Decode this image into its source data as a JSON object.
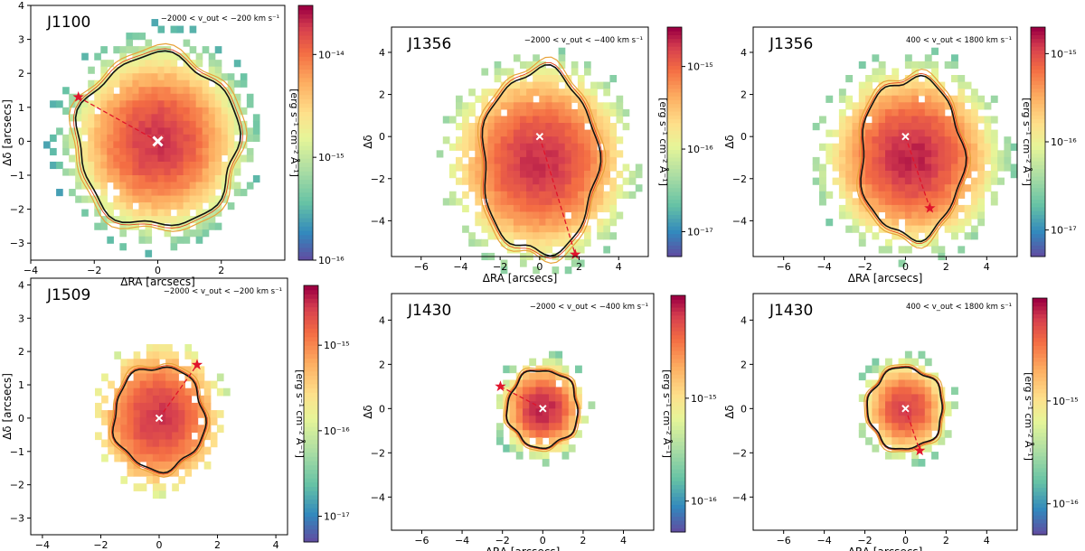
{
  "chart_data": [
    {
      "type": "heatmap",
      "title": "J1100",
      "velocity_label": "−2000 < v_out < −200 km s⁻¹",
      "xlabel": "ΔRA [arcsecs]",
      "ylabel": "Δδ [arcsecs]",
      "xlim": [
        -4,
        4
      ],
      "ylim": [
        -3.5,
        4
      ],
      "xticks": [
        -4,
        -2,
        0,
        2
      ],
      "yticks": [
        -3,
        -2,
        -1,
        0,
        1,
        2,
        3,
        4
      ],
      "colorbar": {
        "label": "[erg s⁻¹ cm⁻² Å⁻¹]",
        "range": [
          1e-16,
          3e-14
        ],
        "ticks": [
          {
            "label": "10⁻¹⁴",
            "value": 1e-14
          },
          {
            "label": "10⁻¹⁵",
            "value": 1e-15
          },
          {
            "label": "10⁻¹⁶",
            "value": 1e-16
          }
        ]
      },
      "emission": {
        "center": [
          0,
          0
        ],
        "peak": 2e-14,
        "sigma": 1.1,
        "floor": 1.2e-16,
        "extent_radius": 3.1
      },
      "contour_radius": 2.6,
      "nucleus": [
        0,
        0
      ],
      "star": [
        -2.5,
        1.3
      ],
      "grid": false
    },
    {
      "type": "heatmap",
      "title": "J1356",
      "velocity_label": "−2000 < v_out < −400 km s⁻¹",
      "xlabel": "ΔRA [arcsecs]",
      "ylabel": "Δδ",
      "xlim": [
        -7.5,
        5.5
      ],
      "ylim": [
        -5.7,
        5.2
      ],
      "xticks": [
        -6,
        -4,
        -2,
        0,
        2,
        4
      ],
      "yticks": [
        -4,
        -2,
        0,
        2,
        4
      ],
      "colorbar": {
        "label": "[erg s⁻¹ cm⁻² Å⁻¹]",
        "range": [
          5e-18,
          3e-15
        ],
        "ticks": [
          {
            "label": "10⁻¹⁵",
            "value": 1e-15
          },
          {
            "label": "10⁻¹⁶",
            "value": 1e-16
          },
          {
            "label": "10⁻¹⁷",
            "value": 1e-17
          }
        ]
      },
      "emission": {
        "center": [
          0,
          -1.2
        ],
        "peak": 2e-15,
        "sigma": 1.8,
        "floor": 8e-18,
        "extent_radius": 4.8
      },
      "contour_radius": 3.0,
      "nucleus": [
        0,
        0
      ],
      "star": [
        1.8,
        -5.6
      ],
      "grid": false
    },
    {
      "type": "heatmap",
      "title": "J1356",
      "velocity_label": "400 < v_out < 1800 km s⁻¹",
      "xlabel": "ΔRA [arcsecs]",
      "ylabel": "Δδ",
      "xlim": [
        -7.5,
        5.5
      ],
      "ylim": [
        -5.7,
        5.2
      ],
      "xticks": [
        -6,
        -4,
        -2,
        0,
        2,
        4
      ],
      "yticks": [
        -4,
        -2,
        0,
        2,
        4
      ],
      "colorbar": {
        "label": "[erg s⁻¹ cm⁻² Å⁻¹]",
        "range": [
          5e-18,
          2e-15
        ],
        "ticks": [
          {
            "label": "10⁻¹⁵",
            "value": 1e-15
          },
          {
            "label": "10⁻¹⁶",
            "value": 1e-16
          },
          {
            "label": "10⁻¹⁷",
            "value": 1e-17
          }
        ]
      },
      "emission": {
        "center": [
          0.3,
          -1.0
        ],
        "peak": 1.5e-15,
        "sigma": 1.7,
        "floor": 8e-18,
        "extent_radius": 4.6
      },
      "contour_radius": 2.6,
      "nucleus": [
        0,
        0
      ],
      "star": [
        1.2,
        -3.4
      ],
      "grid": false
    },
    {
      "type": "heatmap",
      "title": "J1509",
      "velocity_label": "−2000 < v_out < −200 km s⁻¹",
      "xlabel": "ΔRA [arcsecs]",
      "ylabel": "Δδ [arcsecs]",
      "xlim": [
        -4.4,
        4.4
      ],
      "ylim": [
        -3.5,
        4.2
      ],
      "xticks": [
        -4,
        -2,
        0,
        2,
        4
      ],
      "yticks": [
        -3,
        -2,
        -1,
        0,
        1,
        2,
        3,
        4
      ],
      "colorbar": {
        "label": "[erg s⁻¹ cm⁻² Å⁻¹]",
        "range": [
          5e-18,
          5e-15
        ],
        "ticks": [
          {
            "label": "10⁻¹⁵",
            "value": 1e-15
          },
          {
            "label": "10⁻¹⁶",
            "value": 1e-16
          },
          {
            "label": "10⁻¹⁷",
            "value": 1e-17
          }
        ]
      },
      "emission": {
        "center": [
          0,
          0
        ],
        "peak": 3e-15,
        "sigma": 0.9,
        "floor": 8e-18,
        "extent_radius": 2.2
      },
      "contour_radius": 1.6,
      "nucleus": [
        0,
        0
      ],
      "star": [
        1.3,
        1.6
      ],
      "grid": false
    },
    {
      "type": "heatmap",
      "title": "J1430",
      "velocity_label": "−2000 < v_out < −400 km s⁻¹",
      "xlabel": "ΔRA [arcsecs]",
      "ylabel": "Δδ",
      "xlim": [
        -7.5,
        5.5
      ],
      "ylim": [
        -5.5,
        5.2
      ],
      "xticks": [
        -6,
        -4,
        -2,
        0,
        2,
        4
      ],
      "yticks": [
        -4,
        -2,
        0,
        2,
        4
      ],
      "colorbar": {
        "label": "[erg s⁻¹ cm⁻² Å⁻¹]",
        "range": [
          5e-17,
          1e-14
        ],
        "ticks": [
          {
            "label": "10⁻¹⁵",
            "value": 1e-15
          },
          {
            "label": "10⁻¹⁶",
            "value": 1e-16
          }
        ]
      },
      "emission": {
        "center": [
          0,
          0
        ],
        "peak": 8e-15,
        "sigma": 0.9,
        "floor": 6e-17,
        "extent_radius": 2.3
      },
      "contour_radius": 1.8,
      "nucleus": [
        0,
        0
      ],
      "star": [
        -2.1,
        1.0
      ],
      "grid": false
    },
    {
      "type": "heatmap",
      "title": "J1430",
      "velocity_label": "400 < v_out < 1800 km s⁻¹",
      "xlabel": "ΔRA [arcsecs]",
      "ylabel": "Δδ",
      "xlim": [
        -7.5,
        5.5
      ],
      "ylim": [
        -5.5,
        5.2
      ],
      "xticks": [
        -6,
        -4,
        -2,
        0,
        2,
        4
      ],
      "yticks": [
        -4,
        -2,
        0,
        2,
        4
      ],
      "colorbar": {
        "label": "[erg s⁻¹ cm⁻² Å⁻¹]",
        "range": [
          5e-17,
          1e-14
        ],
        "ticks": [
          {
            "label": "10⁻¹⁵",
            "value": 1e-15
          },
          {
            "label": "10⁻¹⁶",
            "value": 1e-16
          }
        ]
      },
      "emission": {
        "center": [
          0,
          0
        ],
        "peak": 6e-15,
        "sigma": 0.95,
        "floor": 6e-17,
        "extent_radius": 2.4
      },
      "contour_radius": 1.9,
      "nucleus": [
        0,
        0
      ],
      "star": [
        0.7,
        -1.9
      ],
      "grid": false
    }
  ],
  "colors": {
    "contour_outer": "#e8a33a",
    "contour_inner": "#111111",
    "contour_red": "#e0451c",
    "nucleus": "#ffffff",
    "star": "#e0142b",
    "dashed_line": "#e0142b"
  }
}
